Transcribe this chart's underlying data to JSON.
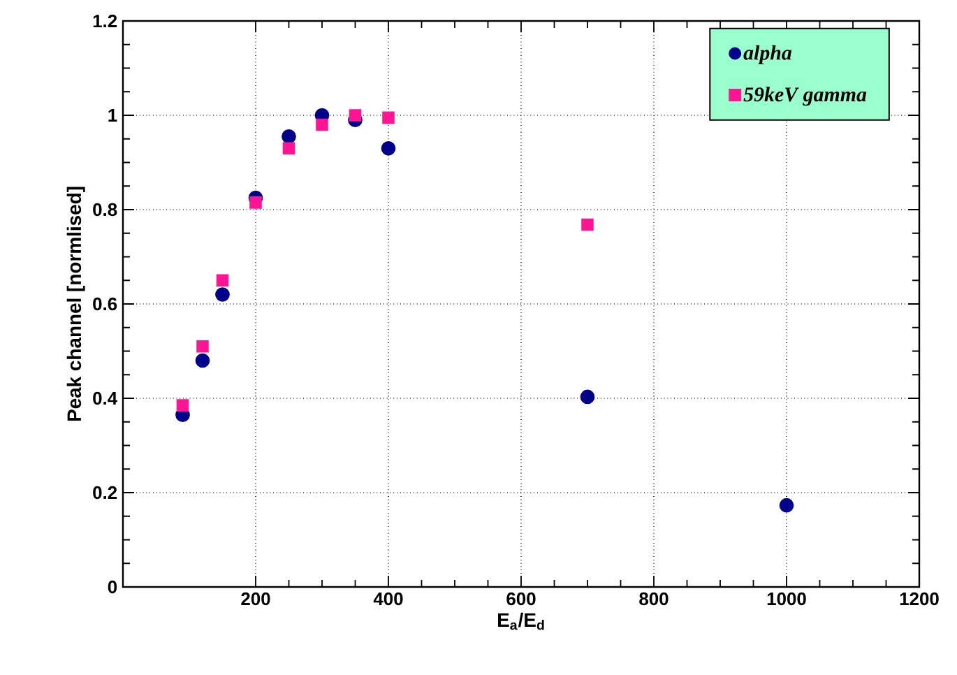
{
  "chart_data": {
    "type": "scatter",
    "xlabel": "E$_{a}$/E$_{d}$",
    "ylabel": "Peak channel [normlised]",
    "xlim": [
      0,
      1200
    ],
    "ylim": [
      0,
      1.2
    ],
    "xticks": [
      200,
      400,
      600,
      800,
      1000,
      1200
    ],
    "yticks": [
      0,
      0.2,
      0.4,
      0.6,
      0.8,
      1,
      1.2
    ],
    "grid": true,
    "legend": "top right",
    "series": [
      {
        "name": "alpha",
        "color": "#00008b",
        "marker": "circle",
        "x": [
          90,
          120,
          150,
          200,
          250,
          300,
          350,
          400,
          700,
          1000
        ],
        "values": [
          0.365,
          0.48,
          0.62,
          0.825,
          0.955,
          1.0,
          0.99,
          0.93,
          0.403,
          0.173
        ]
      },
      {
        "name": "59keV gamma",
        "color": "#ff1493",
        "marker": "square",
        "x": [
          90,
          120,
          150,
          200,
          250,
          300,
          350,
          400,
          700
        ],
        "values": [
          0.385,
          0.51,
          0.65,
          0.815,
          0.93,
          0.98,
          1.0,
          0.995,
          0.768
        ]
      }
    ]
  }
}
